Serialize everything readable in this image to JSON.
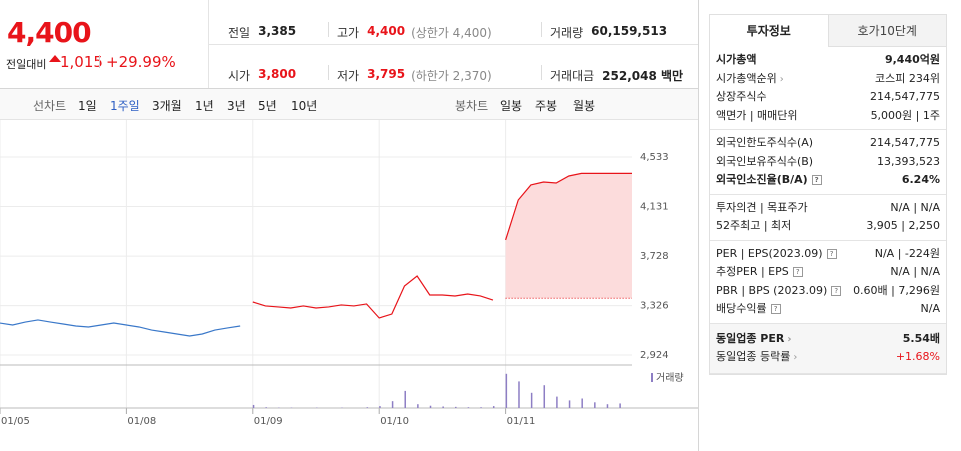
{
  "header": {
    "price": "4,400",
    "change_label": "전일대비",
    "change": "1,015",
    "change_rate": "+29.99%",
    "stats": [
      {
        "label": "전일",
        "value": "3,385"
      },
      {
        "label": "고가",
        "value": "4,400",
        "note": "(상한가 4,400)"
      },
      {
        "label": "거래량",
        "value": "60,159,513"
      },
      {
        "label": "시가",
        "value": "3,800"
      },
      {
        "label": "저가",
        "value": "3,795",
        "note": "(하한가 2,370)"
      },
      {
        "label": "거래대금",
        "value": "252,048 백만"
      }
    ]
  },
  "toolbar": {
    "line_label": "선차트",
    "line_periods": [
      "1일",
      "1주일",
      "3개월",
      "1년",
      "3년",
      "5년",
      "10년"
    ],
    "active_period": 1,
    "candle_label": "봉차트",
    "candle_periods": [
      "일봉",
      "주봉",
      "월봉"
    ]
  },
  "chart_data": {
    "type": "line",
    "categories": [
      "01/05",
      null,
      null,
      null,
      null,
      null,
      null,
      null,
      null,
      null,
      "01/08",
      null,
      null,
      null,
      null,
      null,
      null,
      null,
      null,
      null,
      "01/09",
      null,
      null,
      null,
      null,
      null,
      null,
      null,
      null,
      null,
      "01/10",
      null,
      null,
      null,
      null,
      null,
      null,
      null,
      null,
      null,
      "01/11",
      null,
      null,
      null,
      null,
      null,
      null,
      null,
      null,
      null
    ],
    "series": [
      {
        "color": "#3a78c9",
        "values": [
          3184,
          3168,
          3192,
          3209,
          3192,
          3176,
          3160,
          3152,
          3168,
          3184,
          3168,
          3152,
          3127,
          3111,
          3095,
          3079,
          3095,
          3127,
          3144,
          3160,
          null,
          null,
          null,
          null,
          null,
          null,
          null,
          null,
          null,
          null,
          null,
          null,
          null,
          null,
          null,
          null,
          null,
          null,
          null,
          null,
          null,
          null,
          null,
          null,
          null,
          null,
          null,
          null,
          null,
          null
        ]
      },
      {
        "color": "#e8141a",
        "values": [
          null,
          null,
          null,
          null,
          null,
          null,
          null,
          null,
          null,
          null,
          null,
          null,
          null,
          null,
          null,
          null,
          null,
          null,
          null,
          null,
          3355,
          3323,
          3315,
          3306,
          3323,
          3306,
          3315,
          3331,
          3323,
          3339,
          3225,
          3257,
          3485,
          3566,
          3412,
          3412,
          3404,
          3420,
          3404,
          3371,
          null,
          null,
          null,
          null,
          null,
          null,
          null,
          null,
          null,
          null
        ]
      },
      {
        "color": "#e8141a",
        "fill": "#fcdcdc",
        "values": [
          null,
          null,
          null,
          null,
          null,
          null,
          null,
          null,
          null,
          null,
          null,
          null,
          null,
          null,
          null,
          null,
          null,
          null,
          null,
          null,
          null,
          null,
          null,
          null,
          null,
          null,
          null,
          null,
          null,
          null,
          null,
          null,
          null,
          null,
          null,
          null,
          null,
          null,
          null,
          null,
          3859,
          4184,
          4306,
          4330,
          4322,
          4379,
          4400,
          4400,
          4400,
          4400
        ]
      }
    ],
    "baseline": 3385,
    "ylim": [
      2843,
      4834
    ],
    "yticks": [
      {
        "value": 2924,
        "label": "2,924"
      },
      {
        "value": 3326,
        "label": "3,326"
      },
      {
        "value": 3728,
        "label": "3,728"
      },
      {
        "value": 4131,
        "label": "4,131"
      },
      {
        "value": 4533,
        "label": "4,533"
      }
    ],
    "grid": true,
    "volume": {
      "name": "거래량",
      "color": "#8d7ec4",
      "ylim": [
        0,
        100
      ],
      "values": [
        0,
        0,
        0,
        0,
        0,
        0,
        0,
        0,
        0,
        0,
        0,
        0,
        0,
        0,
        0,
        0,
        0,
        0,
        0,
        0,
        8,
        2,
        1,
        1,
        0,
        1,
        0,
        1,
        0,
        2,
        5,
        18,
        45,
        10,
        6,
        4,
        3,
        2,
        2,
        5,
        90,
        70,
        40,
        60,
        30,
        20,
        25,
        15,
        10,
        12
      ]
    }
  },
  "info": {
    "tabs": [
      "투자정보",
      "호가10단계"
    ],
    "groups": [
      [
        {
          "label": "시가총액",
          "value": "9,440억원"
        },
        {
          "label": "시가총액순위",
          "value": "코스피 234위"
        },
        {
          "label": "상장주식수",
          "value": "214,547,775"
        },
        {
          "label": "액면가 | 매매단위",
          "value": "5,000원 | 1주"
        }
      ],
      [
        {
          "label": "외국인한도주식수(A)",
          "value": "214,547,775"
        },
        {
          "label": "외국인보유주식수(B)",
          "value": "13,393,523"
        },
        {
          "label": "외국인소진율(B/A)",
          "value": "6.24%"
        }
      ],
      [
        {
          "label": "투자의견 | 목표주가",
          "value": "N/A | N/A"
        },
        {
          "label": "52주최고 | 최저",
          "value": "3,905 | 2,250"
        }
      ],
      [
        {
          "label": "PER | EPS(2023.09)",
          "value": "N/A | -224원"
        },
        {
          "label": "추정PER | EPS",
          "value": "N/A | N/A"
        },
        {
          "label": "PBR | BPS (2023.09)",
          "value": "0.60배 | 7,296원"
        },
        {
          "label": "배당수익률",
          "value": "N/A"
        }
      ],
      [
        {
          "label": "동일업종 PER",
          "value": "5.54배"
        },
        {
          "label": "동일업종 등락률",
          "value": "+1.68%"
        }
      ]
    ]
  }
}
